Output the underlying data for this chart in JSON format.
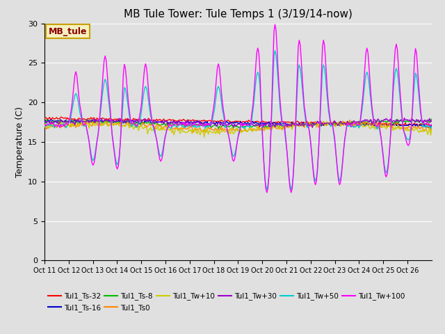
{
  "title": "MB Tule Tower: Tule Temps 1 (3/19/14-now)",
  "ylabel": "Temperature (C)",
  "ylim": [
    0,
    30
  ],
  "yticks": [
    0,
    5,
    10,
    15,
    20,
    25,
    30
  ],
  "background_color": "#e0e0e0",
  "plot_bg_color": "#e0e0e0",
  "legend_box_facecolor": "#f5f0c0",
  "legend_box_edgecolor": "#c8a000",
  "legend_label_color": "#8b0000",
  "series": [
    {
      "label": "Tul1_Ts-32",
      "color": "#ff0000"
    },
    {
      "label": "Tul1_Ts-16",
      "color": "#0000cc"
    },
    {
      "label": "Tul1_Ts-8",
      "color": "#00bb00"
    },
    {
      "label": "Tul1_Ts0",
      "color": "#ff8800"
    },
    {
      "label": "Tul1_Tw+10",
      "color": "#cccc00"
    },
    {
      "label": "Tul1_Tw+30",
      "color": "#9900cc"
    },
    {
      "label": "Tul1_Tw+50",
      "color": "#00cccc"
    },
    {
      "label": "Tul1_Tw+100",
      "color": "#ff00ff"
    }
  ],
  "xtick_labels": [
    "Oct 11",
    "Oct 12",
    "Oct 13",
    "Oct 14",
    "Oct 15",
    "Oct 16",
    "Oct 17",
    "Oct 18",
    "Oct 19",
    "Oct 20",
    "Oct 21",
    "Oct 22",
    "Oct 23",
    "Oct 24",
    "Oct 25",
    "Oct 26"
  ],
  "grid_color": "#ffffff",
  "title_fontsize": 11,
  "axis_label_fontsize": 9,
  "tick_fontsize": 8,
  "lw": 1.0,
  "n_pts": 384
}
